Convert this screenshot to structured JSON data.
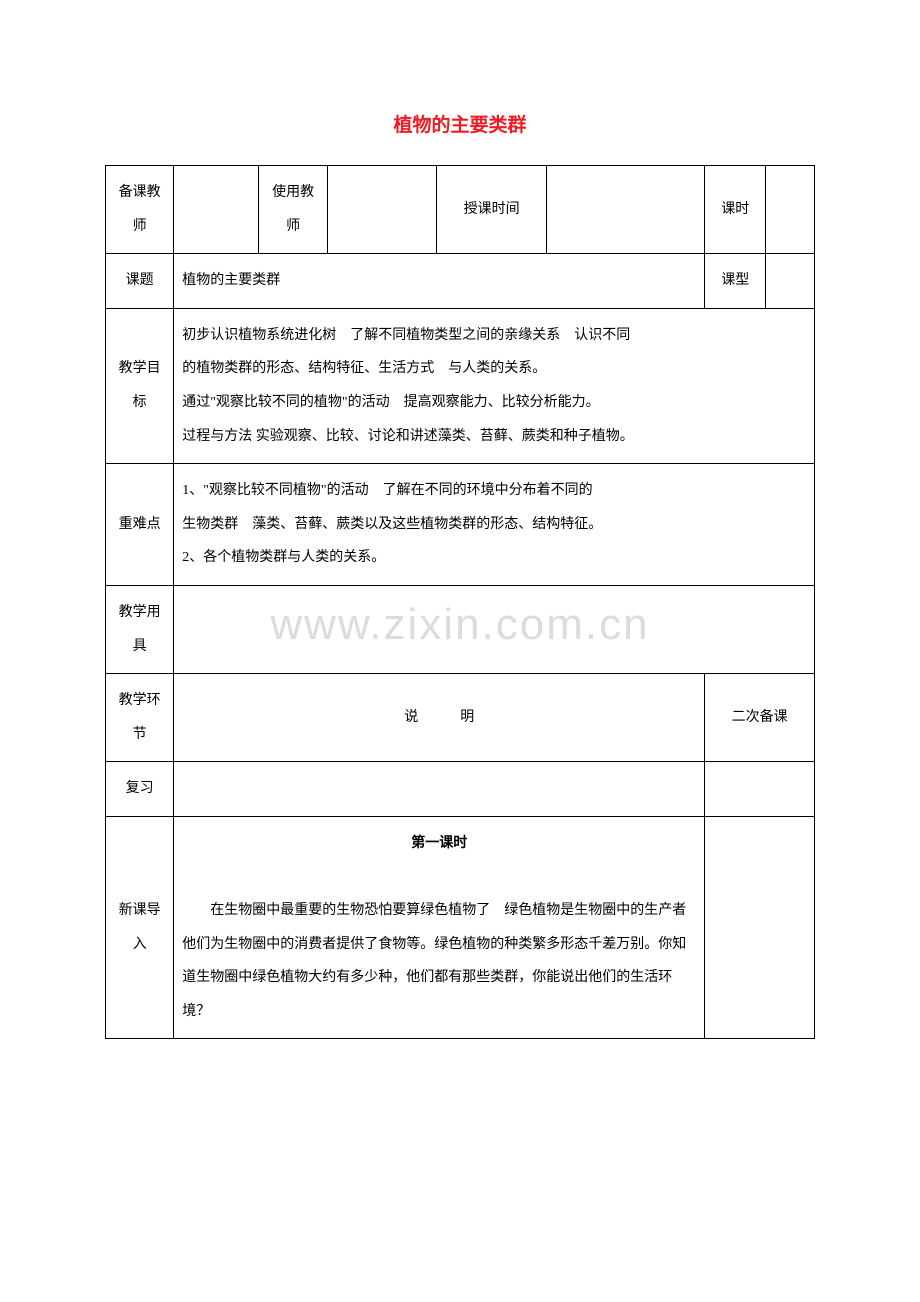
{
  "title": "植物的主要类群",
  "colors": {
    "title_color": "#ed1c24",
    "text_color": "#000000",
    "border_color": "#000000",
    "background_color": "#ffffff",
    "watermark_color": "#dcdcdc"
  },
  "typography": {
    "title_fontsize": 19,
    "body_fontsize": 14,
    "watermark_fontsize": 44,
    "font_family": "SimSun"
  },
  "watermark": "www.zixin.com.cn",
  "header_row": {
    "labels": {
      "prep_teacher": "备课教师",
      "using_teacher": "使用教师",
      "class_time": "授课时间",
      "period": "课时"
    },
    "values": {
      "prep_teacher": "",
      "using_teacher": "",
      "class_time": "",
      "period": ""
    }
  },
  "topic_row": {
    "label": "课题",
    "value": "植物的主要类群",
    "type_label": "课型",
    "type_value": ""
  },
  "objectives": {
    "label": "教学目标",
    "content": "初步认识植物系统进化树　了解不同植物类型之间的亲缘关系　认识不同\n的植物类群的形态、结构特征、生活方式　与人类的关系。\n通过\"观察比较不同的植物\"的活动　提高观察能力、比较分析能力。\n过程与方法 实验观察、比较、讨论和讲述藻类、苔藓、蕨类和种子植物。"
  },
  "key_points": {
    "label": "重难点",
    "content": "1、\"观察比较不同植物\"的活动　了解在不同的环境中分布着不同的\n生物类群　藻类、苔藓、蕨类以及这些植物类群的形态、结构特征。\n2、各个植物类群与人类的关系。"
  },
  "tools": {
    "label": "教学用具",
    "content": ""
  },
  "stages": {
    "label": "教学环节",
    "explain_label": "说　　　明",
    "secondary_label": "二次备课"
  },
  "review": {
    "label": "复习",
    "content": ""
  },
  "lesson": {
    "label": "新课导入",
    "section_title": "第一课时",
    "content": "　　在生物圈中最重要的生物恐怕要算绿色植物了　绿色植物是生物圈中的生产者　他们为生物圈中的消费者提供了食物等。绿色植物的种类繁多形态千差万别。你知道生物圈中绿色植物大约有多少种，他们都有那些类群，你能说出他们的生活环境？"
  }
}
